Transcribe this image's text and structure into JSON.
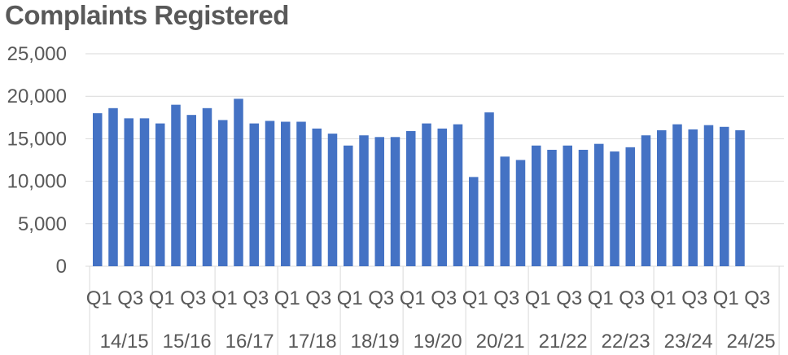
{
  "chart_data": {
    "type": "bar",
    "title": "Complaints Registered",
    "xlabel": "",
    "ylabel": "",
    "ylim": [
      0,
      25000
    ],
    "yticks": [
      "0",
      "5,000",
      "10,000",
      "15,000",
      "20,000",
      "25,000"
    ],
    "ytick_values": [
      0,
      5000,
      10000,
      15000,
      20000,
      25000
    ],
    "grid": true,
    "bar_color": "#4472C4",
    "quarter_labels": [
      "Q1",
      "Q3"
    ],
    "years": [
      "14/15",
      "15/16",
      "16/17",
      "17/18",
      "18/19",
      "19/20",
      "20/21",
      "21/22",
      "22/23",
      "23/24",
      "24/25"
    ],
    "quarters_per_year": 4,
    "values": [
      18000,
      18600,
      17400,
      17400,
      16800,
      19000,
      17800,
      18600,
      17200,
      19700,
      16800,
      17100,
      17000,
      17000,
      16200,
      15600,
      14200,
      15400,
      15200,
      15200,
      15900,
      16800,
      16200,
      16700,
      10500,
      18100,
      12900,
      12500,
      14200,
      13700,
      14200,
      13700,
      14400,
      13500,
      14000,
      15400,
      16000,
      16700,
      16100,
      16600,
      16400,
      16000
    ]
  }
}
